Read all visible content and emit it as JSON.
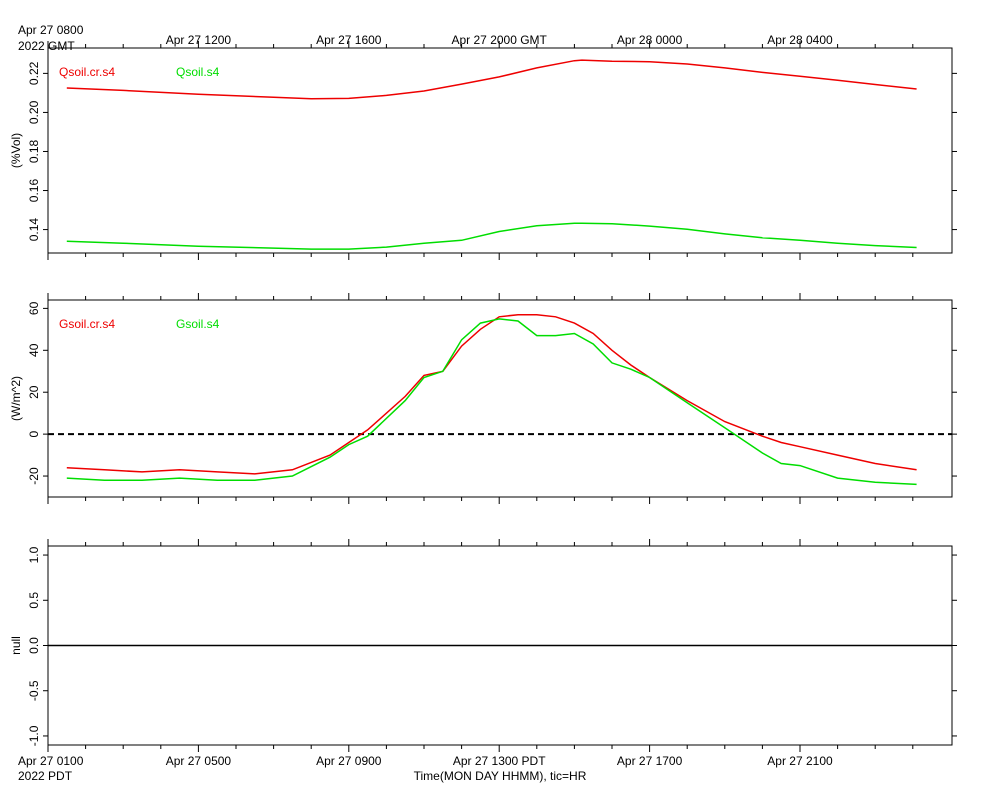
{
  "top_axis": {
    "tick_labels": [
      "Apr 27 0800",
      "Apr 27 1200",
      "Apr 27 1600",
      "Apr 27 2000 GMT",
      "Apr 28 0000",
      "Apr 28 0400"
    ],
    "year_label": "2022 GMT"
  },
  "bottom_axis": {
    "tick_labels": [
      "Apr 27 0100",
      "Apr 27 0500",
      "Apr 27 0900",
      "Apr 27 1300 PDT",
      "Apr 27 1700",
      "Apr 27 2100"
    ],
    "year_label": "2022 PDT",
    "xlabel": "Time(MON DAY HHMM), tic=HR"
  },
  "colors": {
    "red": "#ee0000",
    "green": "#00dd00"
  },
  "chart_data": [
    {
      "type": "line",
      "ylabel": "(%Vol)",
      "ylim": [
        0.128,
        0.233
      ],
      "yticks": [
        0.14,
        0.16,
        0.18,
        0.2,
        0.22
      ],
      "ytick_labels": [
        "0.14",
        "0.16",
        "0.18",
        "0.20",
        "0.22"
      ],
      "x_pdt_hours": [
        1.5,
        3,
        5,
        7,
        8,
        9,
        10,
        11,
        12,
        13,
        14,
        15,
        15.2,
        16,
        17,
        18,
        19,
        20,
        21,
        22,
        23,
        24.1
      ],
      "series": [
        {
          "name": "Qsoil.cr.s4",
          "color": "red",
          "values": [
            0.2125,
            0.2113,
            0.2093,
            0.2078,
            0.207,
            0.2072,
            0.2087,
            0.211,
            0.2145,
            0.2182,
            0.2228,
            0.2265,
            0.2268,
            0.2262,
            0.226,
            0.2248,
            0.2228,
            0.2205,
            0.2185,
            0.2165,
            0.2143,
            0.212
          ]
        },
        {
          "name": "Qsoil.s4",
          "color": "green",
          "values": [
            0.134,
            0.133,
            0.1315,
            0.1305,
            0.13,
            0.13,
            0.131,
            0.133,
            0.1345,
            0.139,
            0.142,
            0.1432,
            0.1432,
            0.143,
            0.1418,
            0.1402,
            0.1378,
            0.1358,
            0.1345,
            0.133,
            0.1318,
            0.1308
          ]
        }
      ]
    },
    {
      "type": "line",
      "ylabel": "(W/m^2)",
      "ylim": [
        -30,
        64
      ],
      "yticks": [
        -20,
        0,
        20,
        40,
        60
      ],
      "ytick_labels": [
        "-20",
        "0",
        "20",
        "40",
        "60"
      ],
      "zero_line": true,
      "x_pdt_hours": [
        1.5,
        2.5,
        3.5,
        4.5,
        5.5,
        6.5,
        7.5,
        8.5,
        9.0,
        9.5,
        10.5,
        11.0,
        11.5,
        12.0,
        12.5,
        13.0,
        13.5,
        14.0,
        14.5,
        15.0,
        15.5,
        16.0,
        16.5,
        17.0,
        18.0,
        19.0,
        20.0,
        20.5,
        21.0,
        22.0,
        23.0,
        24.1
      ],
      "series": [
        {
          "name": "Gsoil.cr.s4",
          "color": "red",
          "values": [
            -16,
            -17,
            -18,
            -17,
            -18,
            -19,
            -17,
            -10,
            -4,
            2,
            18,
            28,
            30,
            42,
            50,
            56,
            57,
            57,
            56,
            53,
            48,
            40,
            33,
            27,
            16,
            6,
            -1,
            -4,
            -6,
            -10,
            -14,
            -17
          ]
        },
        {
          "name": "Gsoil.s4",
          "color": "green",
          "values": [
            -21,
            -22,
            -22,
            -21,
            -22,
            -22,
            -20,
            -11,
            -5,
            -1,
            16,
            27,
            30,
            45,
            53,
            55,
            54,
            47,
            47,
            48,
            43,
            34,
            31,
            27,
            15,
            3,
            -9,
            -14,
            -15,
            -21,
            -23,
            -24
          ]
        }
      ]
    },
    {
      "type": "line",
      "ylabel": "null",
      "ylim": [
        -1.1,
        1.1
      ],
      "yticks": [
        -1.0,
        -0.5,
        0.0,
        0.5,
        1.0
      ],
      "ytick_labels": [
        "-1.0",
        "-0.5",
        "0.0",
        "0.5",
        "1.0"
      ],
      "zero_line_solid": true,
      "series": []
    }
  ]
}
